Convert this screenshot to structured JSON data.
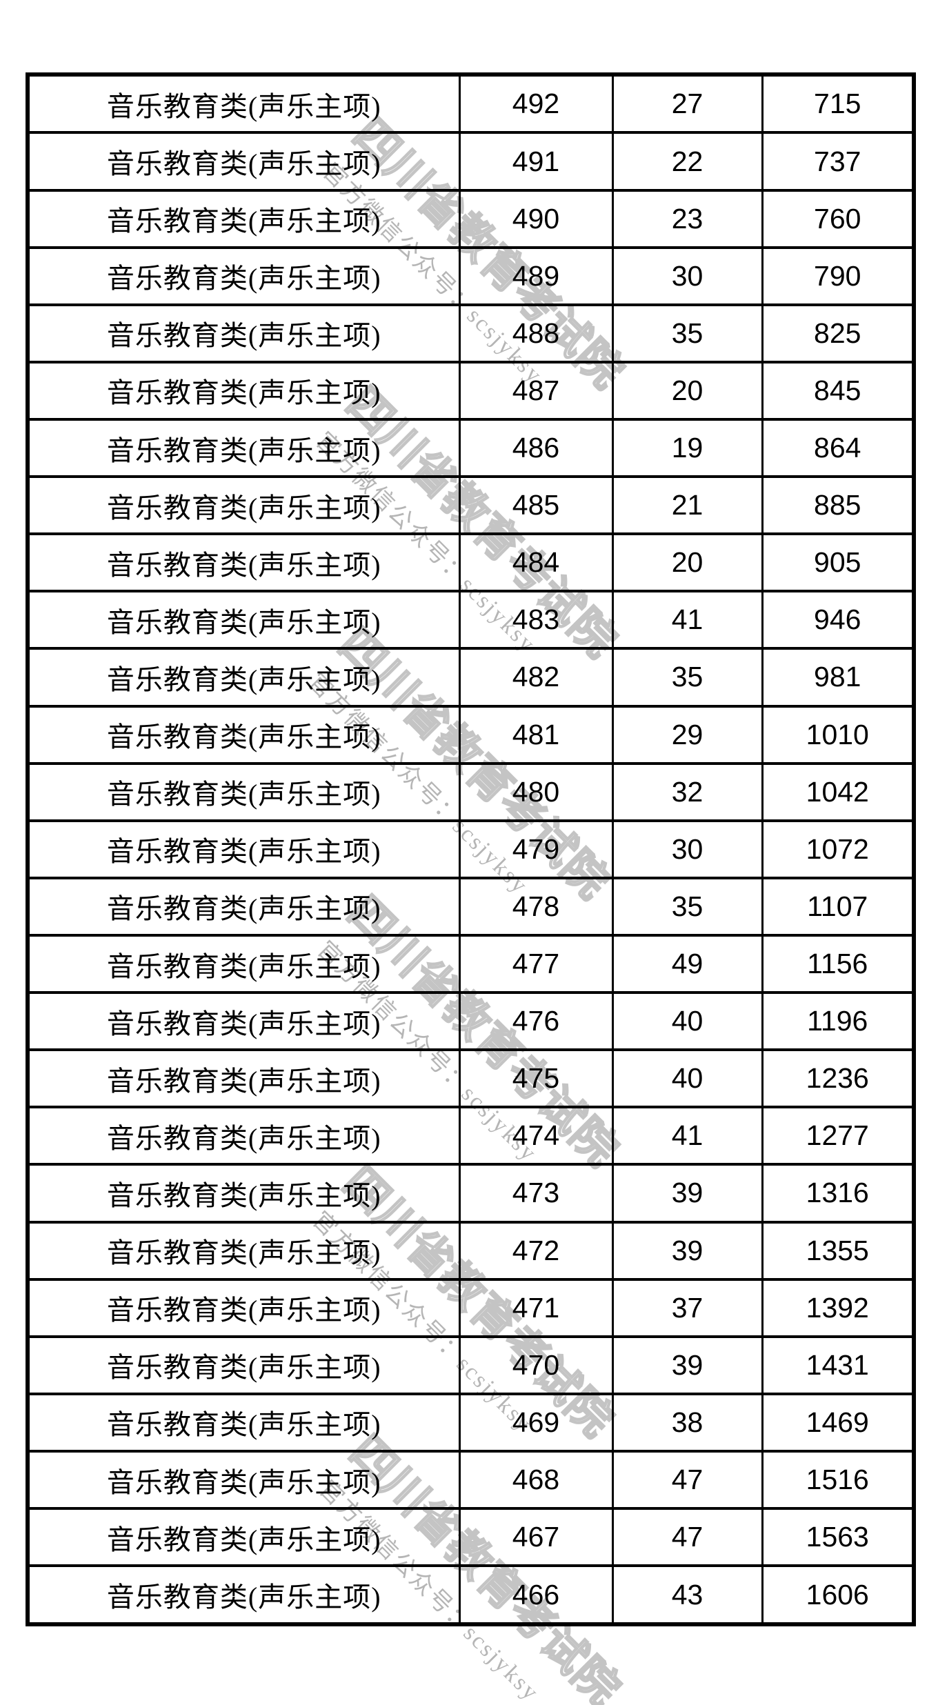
{
  "page": {
    "background": "#ffffff"
  },
  "watermark": {
    "big_text": "四川省教育考试院",
    "small_text": "官方微信公众号：scsjyksy",
    "big_outline_color": "#c4c4c4",
    "small_color": "#b5b5b5"
  },
  "table": {
    "border_color": "#000000",
    "rows": [
      {
        "category": "音乐教育类(声乐主项)",
        "score": "492",
        "count": "27",
        "cumulative": "715"
      },
      {
        "category": "音乐教育类(声乐主项)",
        "score": "491",
        "count": "22",
        "cumulative": "737"
      },
      {
        "category": "音乐教育类(声乐主项)",
        "score": "490",
        "count": "23",
        "cumulative": "760"
      },
      {
        "category": "音乐教育类(声乐主项)",
        "score": "489",
        "count": "30",
        "cumulative": "790"
      },
      {
        "category": "音乐教育类(声乐主项)",
        "score": "488",
        "count": "35",
        "cumulative": "825"
      },
      {
        "category": "音乐教育类(声乐主项)",
        "score": "487",
        "count": "20",
        "cumulative": "845"
      },
      {
        "category": "音乐教育类(声乐主项)",
        "score": "486",
        "count": "19",
        "cumulative": "864"
      },
      {
        "category": "音乐教育类(声乐主项)",
        "score": "485",
        "count": "21",
        "cumulative": "885"
      },
      {
        "category": "音乐教育类(声乐主项)",
        "score": "484",
        "count": "20",
        "cumulative": "905"
      },
      {
        "category": "音乐教育类(声乐主项)",
        "score": "483",
        "count": "41",
        "cumulative": "946"
      },
      {
        "category": "音乐教育类(声乐主项)",
        "score": "482",
        "count": "35",
        "cumulative": "981"
      },
      {
        "category": "音乐教育类(声乐主项)",
        "score": "481",
        "count": "29",
        "cumulative": "1010"
      },
      {
        "category": "音乐教育类(声乐主项)",
        "score": "480",
        "count": "32",
        "cumulative": "1042"
      },
      {
        "category": "音乐教育类(声乐主项)",
        "score": "479",
        "count": "30",
        "cumulative": "1072"
      },
      {
        "category": "音乐教育类(声乐主项)",
        "score": "478",
        "count": "35",
        "cumulative": "1107"
      },
      {
        "category": "音乐教育类(声乐主项)",
        "score": "477",
        "count": "49",
        "cumulative": "1156"
      },
      {
        "category": "音乐教育类(声乐主项)",
        "score": "476",
        "count": "40",
        "cumulative": "1196"
      },
      {
        "category": "音乐教育类(声乐主项)",
        "score": "475",
        "count": "40",
        "cumulative": "1236"
      },
      {
        "category": "音乐教育类(声乐主项)",
        "score": "474",
        "count": "41",
        "cumulative": "1277"
      },
      {
        "category": "音乐教育类(声乐主项)",
        "score": "473",
        "count": "39",
        "cumulative": "1316"
      },
      {
        "category": "音乐教育类(声乐主项)",
        "score": "472",
        "count": "39",
        "cumulative": "1355"
      },
      {
        "category": "音乐教育类(声乐主项)",
        "score": "471",
        "count": "37",
        "cumulative": "1392"
      },
      {
        "category": "音乐教育类(声乐主项)",
        "score": "470",
        "count": "39",
        "cumulative": "1431"
      },
      {
        "category": "音乐教育类(声乐主项)",
        "score": "469",
        "count": "38",
        "cumulative": "1469"
      },
      {
        "category": "音乐教育类(声乐主项)",
        "score": "468",
        "count": "47",
        "cumulative": "1516"
      },
      {
        "category": "音乐教育类(声乐主项)",
        "score": "467",
        "count": "47",
        "cumulative": "1563"
      },
      {
        "category": "音乐教育类(声乐主项)",
        "score": "466",
        "count": "43",
        "cumulative": "1606"
      }
    ]
  }
}
